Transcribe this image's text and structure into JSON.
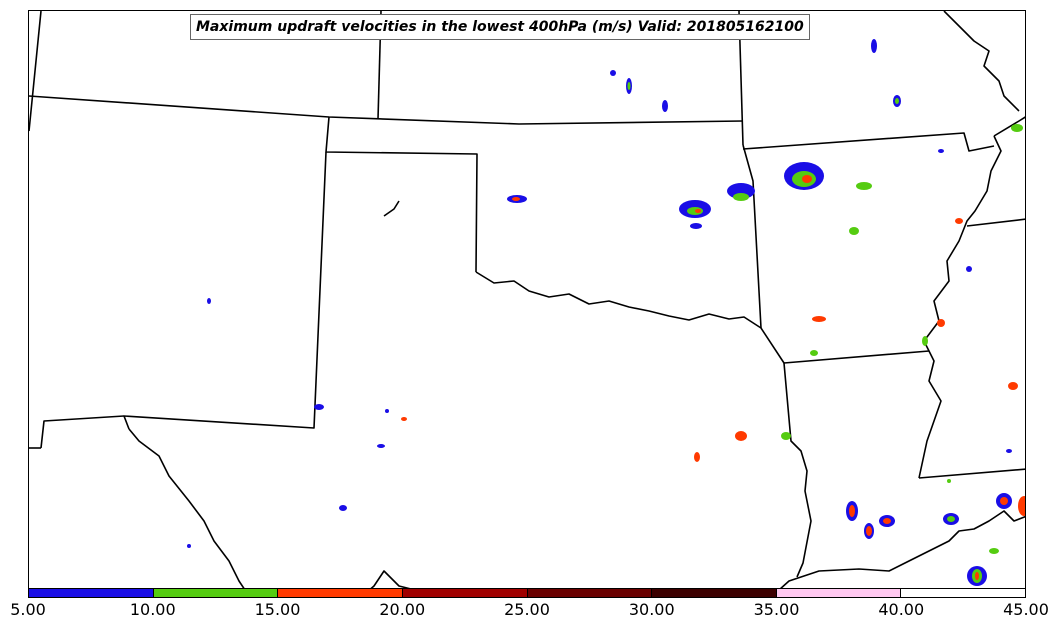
{
  "title": "Maximum updraft velocities in the lowest 400hPa (m/s) Valid: 201805162100",
  "colorbar": {
    "colors": [
      "#1a0ee6",
      "#55cc11",
      "#ff3a00",
      "#a00000",
      "#6a0000",
      "#3c0000",
      "#ffc8f0",
      "#ffffff"
    ],
    "ticks": [
      "5.00",
      "10.00",
      "15.00",
      "20.00",
      "25.00",
      "30.00",
      "35.00",
      "40.00",
      "45.00"
    ]
  }
}
